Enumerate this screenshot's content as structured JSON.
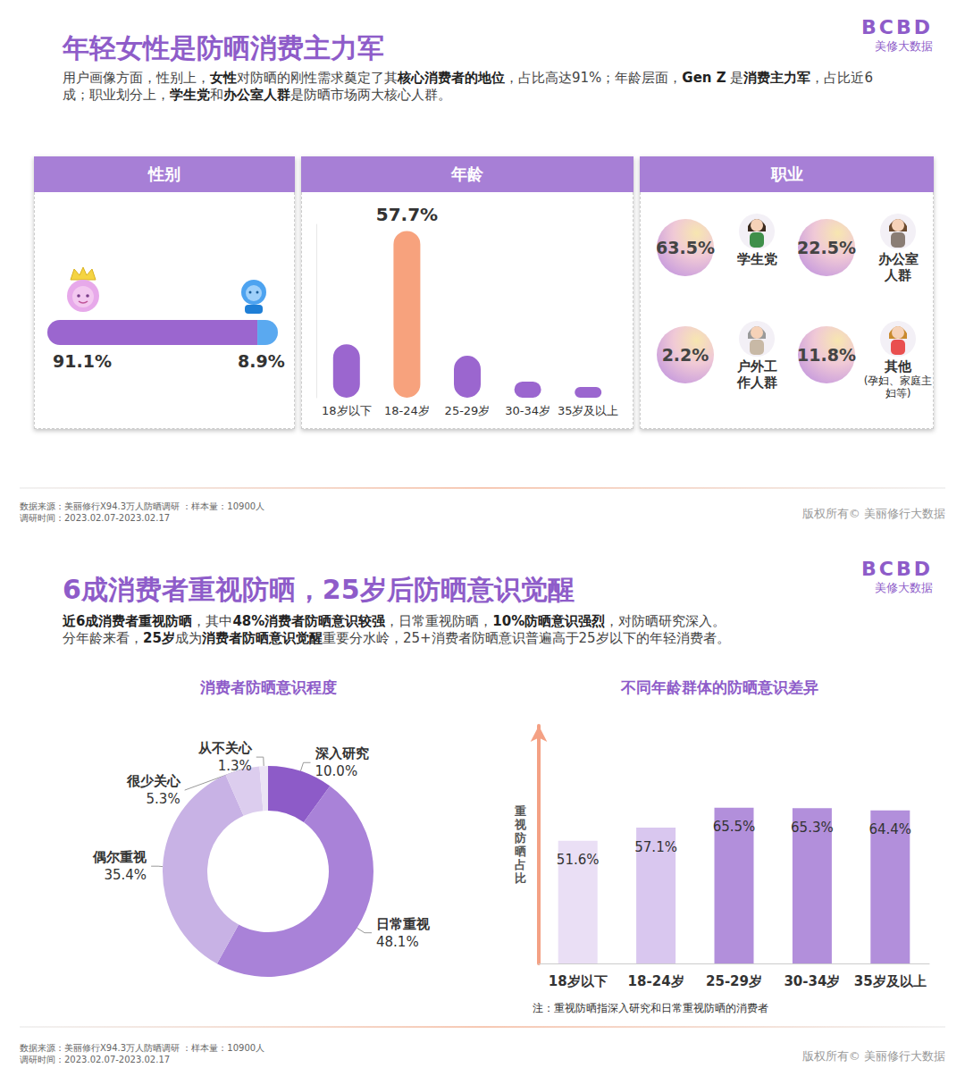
{
  "slides": [
    {
      "title": "年轻女性是防晒消费主力军",
      "brand": {
        "logo": "BCBD",
        "name": "美修大数据"
      },
      "subtitle": [
        [
          {
            "text": "用户画像方面，性别上，"
          },
          {
            "text": "女性",
            "bold": true
          },
          {
            "text": "对防晒的刚性需求奠定了其"
          },
          {
            "text": "核心消费者的地位",
            "bold": true
          },
          {
            "text": "，占比高达91%；年龄层面，"
          },
          {
            "text": "Gen Z",
            "bold": true
          },
          {
            "text": " 是"
          },
          {
            "text": "消费主力军",
            "bold": true
          },
          {
            "text": "，占比近6成；职业划分上，"
          },
          {
            "text": "学生党",
            "bold": true
          },
          {
            "text": "和"
          },
          {
            "text": "办公室人群",
            "bold": true
          },
          {
            "text": "是防晒市场两大核心人群。"
          }
        ]
      ],
      "occupation": {
        "title": "职业",
        "items": [
          {
            "value": "63.5%",
            "label": "学生党"
          },
          {
            "value": "22.5%",
            "label": "办公室人群"
          },
          {
            "value": "2.2%",
            "label": "户外工作人群"
          },
          {
            "value": "11.8%",
            "label": "其他",
            "note": "(孕妇、家庭主妇等)"
          }
        ]
      },
      "source": "数据来源：美丽修行X94.3万人防晒调研 ：样本量：10900人",
      "period": "调研时间：2023.02.07-2023.02.17",
      "copyright": "版权所有© 美丽修行大数据"
    },
    {
      "title": "6成消费者重视防晒，25岁后防晒意识觉醒",
      "brand": {
        "logo": "BCBD",
        "name": "美修大数据"
      },
      "subtitle": [
        [
          {
            "text": "近6成消费者重视防晒",
            "bold": true
          },
          {
            "text": "，其中"
          },
          {
            "text": "48%消费者防晒意识较强",
            "bold": true
          },
          {
            "text": "，日常重视防晒，"
          },
          {
            "text": "10%防晒意识强烈",
            "bold": true
          },
          {
            "text": "，对防晒研究深入。"
          }
        ],
        [
          {
            "text": "分年龄来看，"
          },
          {
            "text": "25岁",
            "bold": true
          },
          {
            "text": "成为"
          },
          {
            "text": "消费者防晒意识觉醒",
            "bold": true
          },
          {
            "text": "重要分水岭，25+消费者防晒意识普遍高于25岁以下的年轻消费者。"
          }
        ]
      ],
      "source": "数据来源：美丽修行X94.3万人防晒调研 ：样本量：10900人",
      "period": "调研时间：2023.02.07-2023.02.17",
      "copyright": "版权所有© 美丽修行大数据"
    }
  ],
  "chart_data": [
    {
      "type": "bar",
      "title": "性别",
      "orientation": "horizontal",
      "stacked": true,
      "categories": [
        null
      ],
      "series": [
        {
          "color": "#9b66cf",
          "values": [
            91.1
          ],
          "value_labels": [
            "91.1%"
          ]
        },
        {
          "color": "#5aa9f0",
          "values": [
            8.9
          ],
          "value_labels": [
            "8.9%"
          ]
        }
      ],
      "xlim": [
        0,
        100
      ],
      "tick_labels": false,
      "data_labels": true
    },
    {
      "type": "bar",
      "title": "年龄",
      "categories": [
        "18岁以下",
        "18-24岁",
        "25-29岁",
        "30-34岁",
        "35岁及以上"
      ],
      "values": [
        18.5,
        57.7,
        14.5,
        5.6,
        3.7
      ],
      "value_labels": [
        null,
        "57.7%",
        null,
        null,
        null
      ],
      "colors": [
        "#9b66cf",
        "#f7a27d",
        "#9b66cf",
        "#9b66cf",
        "#9b66cf"
      ],
      "ylim": [
        0,
        60
      ],
      "tick_labels": "x",
      "data_labels": true
    },
    {
      "type": "pie",
      "title": "消费者防晒意识程度",
      "categories": [
        "深入研究",
        "日常重视",
        "偶尔重视",
        "很少关心",
        "从不关心"
      ],
      "values": [
        10.0,
        48.1,
        35.4,
        5.3,
        1.3
      ],
      "value_labels": [
        "10.0%",
        "48.1%",
        "35.4%",
        "5.3%",
        "1.3%"
      ],
      "colors": [
        "#8d5bc8",
        "#a982d8",
        "#c8b2e5",
        "#dccdee",
        "#ebe3f5"
      ],
      "data_labels": true
    },
    {
      "type": "bar",
      "title": "不同年龄群体的防晒意识差异",
      "ylabel": "重视防晒占比",
      "categories": [
        "18岁以下",
        "18-24岁",
        "25-29岁",
        "30-34岁",
        "35岁及以上"
      ],
      "values": [
        51.6,
        57.1,
        65.5,
        65.3,
        64.4
      ],
      "value_labels": [
        "51.6%",
        "57.1%",
        "65.5%",
        "65.3%",
        "64.4%"
      ],
      "colors": [
        "#eadff5",
        "#d9c7ef",
        "#b28fdb",
        "#b28fdb",
        "#b28fdb"
      ],
      "ylim": [
        0,
        100
      ],
      "tick_labels": "x",
      "data_labels": true,
      "note": "注：重视防晒指深入研究和日常重视防晒的消费者"
    }
  ]
}
